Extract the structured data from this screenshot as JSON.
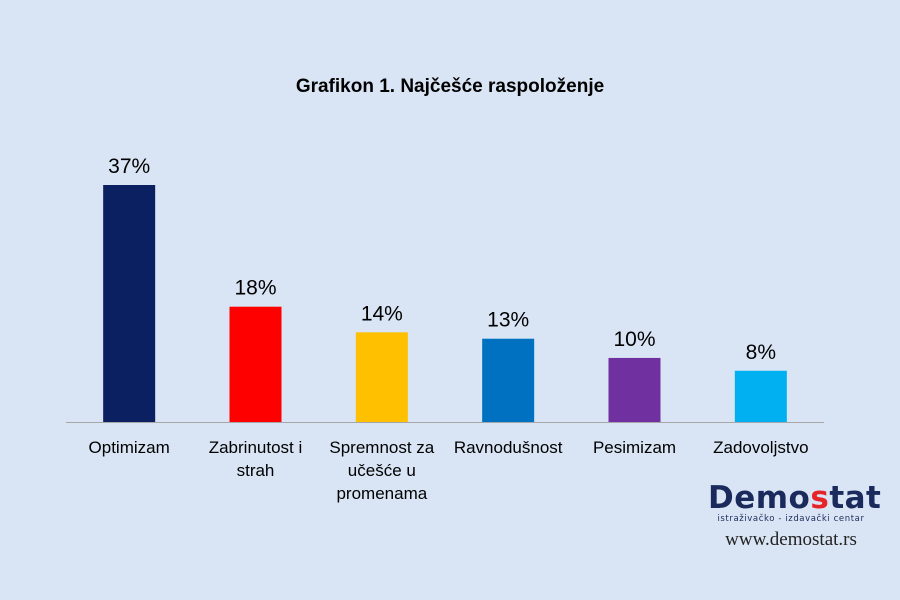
{
  "chart_data": {
    "type": "bar",
    "title": "Grafikon 1. Najčešće raspoloženje",
    "categories": [
      "Optimizam",
      "Zabrinutost i strah",
      "Spremnost za učešće u promenama",
      "Ravnodušnost",
      "Pesimizam",
      "Zadovoljstvo"
    ],
    "category_lines": [
      [
        "Optimizam"
      ],
      [
        "Zabrinutost i",
        "strah"
      ],
      [
        "Spremnost za",
        "učešće u",
        "promenama"
      ],
      [
        "Ravnodušnost"
      ],
      [
        "Pesimizam"
      ],
      [
        "Zadovoljstvo"
      ]
    ],
    "values": [
      37,
      18,
      14,
      13,
      10,
      8
    ],
    "value_labels": [
      "37%",
      "18%",
      "14%",
      "13%",
      "10%",
      "8%"
    ],
    "colors": [
      "#0b2060",
      "#ff0000",
      "#ffc000",
      "#0070c0",
      "#7030a0",
      "#00b0f0"
    ],
    "ylim": [
      0,
      37
    ],
    "grid": false,
    "legend": "none"
  },
  "branding": {
    "logo_prefix": "Demo",
    "logo_accent": "s",
    "logo_suffix": "tat",
    "tagline": "istraživačko - izdavački centar",
    "url": "www.demostat.rs"
  }
}
